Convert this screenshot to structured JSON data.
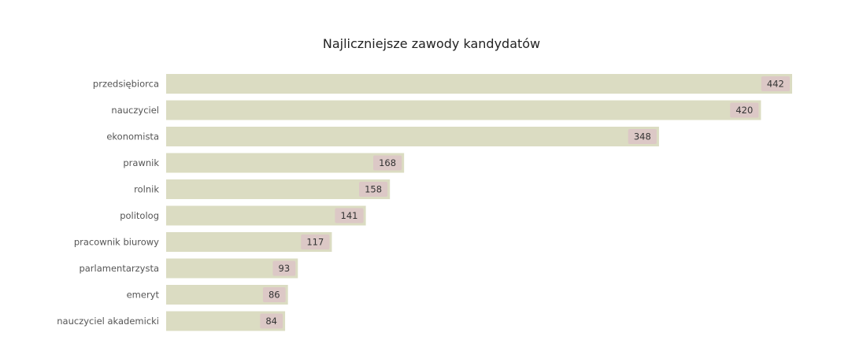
{
  "chart_data": {
    "type": "bar",
    "orientation": "horizontal",
    "title": "Najliczniejsze zawody kandydatów",
    "xlabel": "",
    "ylabel": "",
    "categories": [
      "przedsiębiorca",
      "nauczyciel",
      "ekonomista",
      "prawnik",
      "rolnik",
      "politolog",
      "pracownik biurowy",
      "parlamentarzysta",
      "emeryt",
      "nauczyciel akademicki"
    ],
    "values": [
      442,
      420,
      348,
      168,
      158,
      141,
      117,
      93,
      86,
      84
    ],
    "xlim": [
      0,
      442
    ],
    "grid": false,
    "legend": "none",
    "colors": {
      "bar": "#dbdcc2",
      "bar_edge": "#cfd0b4",
      "label_bg": "#dcc8c6",
      "label_text": "#333333",
      "category_text": "#555555",
      "title_text": "#222222"
    }
  }
}
